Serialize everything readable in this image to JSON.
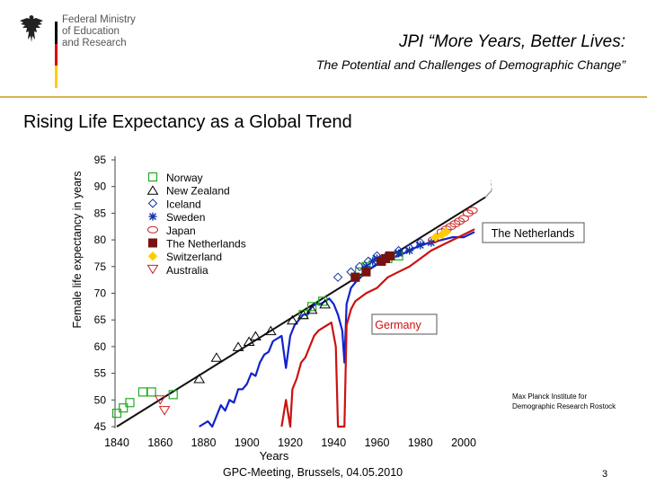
{
  "logo": {
    "line1": "Federal Ministry",
    "line2": "of Education",
    "line3": "and Research"
  },
  "header": {
    "title": "JPI “More Years, Better Lives:",
    "subtitle": "The Potential and Challenges of Demographic Change”"
  },
  "section_title": "Rising Life Expectancy as a Global Trend",
  "colors": {
    "accent_rule": "#d8b24a",
    "flag_black": "#000000",
    "flag_red": "#dd0000",
    "flag_gold": "#ffce00"
  },
  "chart_data": {
    "type": "scatter",
    "xlabel": "Years",
    "ylabel": "Female life expectancy in years",
    "xlim": [
      1830,
      2020
    ],
    "ylim": [
      45,
      95
    ],
    "x_ticks": [
      "1840",
      "1860",
      "1880",
      "1900",
      "1920",
      "1940",
      "1960",
      "1980",
      "2000"
    ],
    "y_ticks": [
      "95",
      "90",
      "85",
      "80",
      "75",
      "70",
      "65",
      "60",
      "55",
      "50",
      "45"
    ],
    "legend_position": "top-left",
    "series": [
      {
        "name": "Norway",
        "marker": "square",
        "color": "#22aa22",
        "points": [
          [
            1840,
            47.5
          ],
          [
            1843,
            48.5
          ],
          [
            1846,
            49.5
          ],
          [
            1852,
            51.5
          ],
          [
            1856,
            51.5
          ],
          [
            1866,
            51
          ],
          [
            1926,
            66
          ],
          [
            1930,
            67.5
          ],
          [
            1935,
            68.5
          ],
          [
            1950,
            73
          ],
          [
            1952,
            74
          ],
          [
            1955,
            75
          ],
          [
            1962,
            76
          ],
          [
            1965,
            76.5
          ],
          [
            1970,
            77
          ]
        ]
      },
      {
        "name": "New Zealand",
        "marker": "triangle-up",
        "color": "#000000",
        "points": [
          [
            1878,
            54
          ],
          [
            1886,
            58
          ],
          [
            1896,
            60
          ],
          [
            1901,
            61
          ],
          [
            1904,
            62
          ],
          [
            1911,
            63
          ],
          [
            1921,
            65
          ],
          [
            1926,
            66
          ],
          [
            1930,
            67
          ],
          [
            1936,
            68
          ]
        ]
      },
      {
        "name": "Iceland",
        "marker": "diamond",
        "color": "#1133aa",
        "points": [
          [
            1942,
            73
          ],
          [
            1948,
            74
          ],
          [
            1952,
            75
          ],
          [
            1956,
            76
          ],
          [
            1960,
            77
          ],
          [
            1970,
            78
          ],
          [
            1975,
            78.5
          ],
          [
            1980,
            79.5
          ]
        ]
      },
      {
        "name": "Sweden",
        "marker": "star",
        "color": "#1133aa",
        "points": [
          [
            1955,
            75
          ],
          [
            1958,
            76
          ],
          [
            1960,
            76.5
          ],
          [
            1965,
            77
          ],
          [
            1970,
            77.5
          ],
          [
            1975,
            78
          ],
          [
            1980,
            79
          ],
          [
            1985,
            79.5
          ]
        ]
      },
      {
        "name": "Japan",
        "marker": "circle",
        "color": "#cc2222",
        "points": [
          [
            1986,
            80
          ],
          [
            1988,
            80.5
          ],
          [
            1990,
            81.5
          ],
          [
            1992,
            82
          ],
          [
            1994,
            82.5
          ],
          [
            1996,
            83
          ],
          [
            1998,
            83.5
          ],
          [
            2000,
            84
          ],
          [
            2002,
            85
          ],
          [
            2004,
            85.5
          ]
        ]
      },
      {
        "name": "The Netherlands",
        "marker": "filled-square",
        "color": "#7a1111",
        "points": [
          [
            1950,
            73
          ],
          [
            1955,
            74
          ],
          [
            1962,
            76
          ],
          [
            1964,
            76.5
          ],
          [
            1966,
            77
          ]
        ]
      },
      {
        "name": "Switzerland",
        "marker": "filled-diamond",
        "color": "#ffcc00",
        "points": [
          [
            1987,
            80.5
          ],
          [
            1990,
            81
          ],
          [
            1992,
            81.5
          ]
        ]
      },
      {
        "name": "Australia",
        "marker": "triangle-down",
        "color": "#cc2222",
        "points": [
          [
            1860,
            50
          ],
          [
            1862,
            48
          ]
        ]
      }
    ],
    "lines": [
      {
        "name": "The Netherlands",
        "color": "#1122cc",
        "points": [
          [
            1878,
            45
          ],
          [
            1882,
            46
          ],
          [
            1884,
            44
          ],
          [
            1886,
            47
          ],
          [
            1888,
            49
          ],
          [
            1890,
            48
          ],
          [
            1892,
            50
          ],
          [
            1894,
            49.5
          ],
          [
            1896,
            52
          ],
          [
            1898,
            52
          ],
          [
            1900,
            53
          ],
          [
            1902,
            55
          ],
          [
            1904,
            54.5
          ],
          [
            1906,
            57
          ],
          [
            1908,
            58.5
          ],
          [
            1910,
            59
          ],
          [
            1912,
            61
          ],
          [
            1914,
            61.5
          ],
          [
            1916,
            62
          ],
          [
            1918,
            56
          ],
          [
            1920,
            62
          ],
          [
            1922,
            64
          ],
          [
            1924,
            65
          ],
          [
            1926,
            66
          ],
          [
            1928,
            66
          ],
          [
            1930,
            67.5
          ],
          [
            1932,
            68
          ],
          [
            1934,
            68
          ],
          [
            1936,
            68.5
          ],
          [
            1938,
            69
          ],
          [
            1940,
            68
          ],
          [
            1942,
            66
          ],
          [
            1944,
            63
          ],
          [
            1945,
            57
          ],
          [
            1946,
            68
          ],
          [
            1948,
            71
          ],
          [
            1950,
            72
          ],
          [
            1955,
            74
          ],
          [
            1960,
            75.5
          ],
          [
            1965,
            76.5
          ],
          [
            1970,
            77
          ],
          [
            1975,
            78
          ],
          [
            1980,
            79
          ],
          [
            1985,
            79.5
          ],
          [
            1990,
            80
          ],
          [
            1995,
            80.5
          ],
          [
            2000,
            80.5
          ],
          [
            2005,
            81.5
          ]
        ]
      },
      {
        "name": "Germany",
        "color": "#cc1111",
        "points": [
          [
            1916,
            45
          ],
          [
            1918,
            50
          ],
          [
            1920,
            45
          ],
          [
            1921,
            52
          ],
          [
            1923,
            54
          ],
          [
            1925,
            57
          ],
          [
            1927,
            58
          ],
          [
            1929,
            60
          ],
          [
            1931,
            62
          ],
          [
            1933,
            63
          ],
          [
            1935,
            63.5
          ],
          [
            1937,
            64
          ],
          [
            1939,
            64.5
          ],
          [
            1941,
            60
          ],
          [
            1942,
            45
          ],
          [
            1944,
            45
          ],
          [
            1945,
            45
          ],
          [
            1946,
            64
          ],
          [
            1948,
            67
          ],
          [
            1950,
            68.5
          ],
          [
            1955,
            70
          ],
          [
            1960,
            71
          ],
          [
            1965,
            73
          ],
          [
            1970,
            74
          ],
          [
            1975,
            75
          ],
          [
            1980,
            76.5
          ],
          [
            1985,
            78
          ],
          [
            1990,
            79
          ],
          [
            1995,
            80
          ],
          [
            2000,
            81
          ],
          [
            2005,
            82
          ]
        ]
      }
    ],
    "trend_line": {
      "from": [
        1840,
        45
      ],
      "to": [
        2010,
        88
      ]
    },
    "annotations": [
      "The Netherlands",
      "Germany"
    ]
  },
  "mpi_note": "Max Planck Institute for Demographic Research Rostock",
  "footer": "GPC-Meeting, Brussels, 04.05.2010",
  "page_number": "3"
}
